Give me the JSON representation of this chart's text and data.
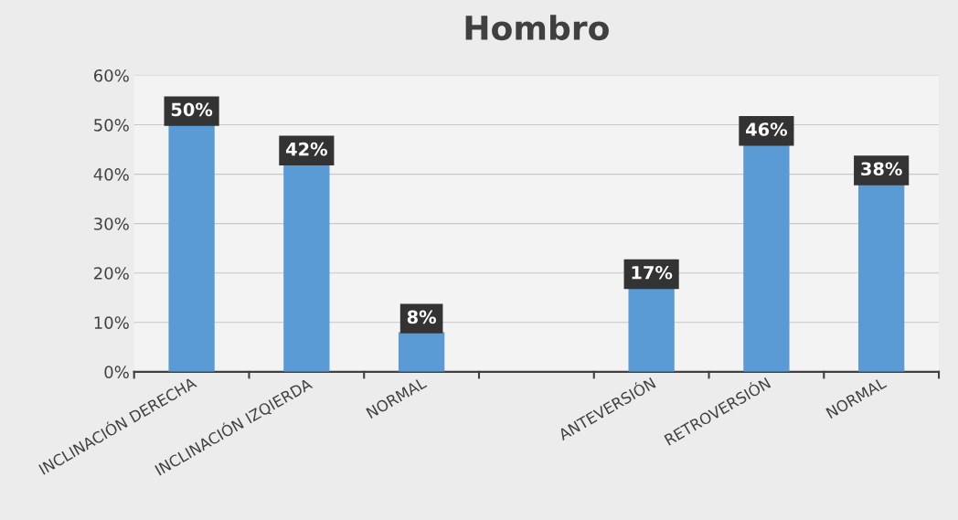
{
  "chart_data": {
    "type": "bar",
    "title": "Hombro",
    "categories": [
      "INCLINACIÓN DERECHA",
      "INCLINACIÓN IZQIERDA",
      "NORMAL",
      null,
      "ANTEVERSIÓN",
      "RETROVERSIÓN",
      "NORMAL"
    ],
    "values": [
      50,
      42,
      8,
      null,
      17,
      46,
      38
    ],
    "value_labels": [
      "50%",
      "42%",
      "8%",
      null,
      "17%",
      "46%",
      "38%"
    ],
    "color": "#5b9bd5",
    "ylim": [
      0,
      60
    ],
    "yticks": [
      {
        "value": 0,
        "label": "0%"
      },
      {
        "value": 10,
        "label": "10%"
      },
      {
        "value": 20,
        "label": "20%"
      },
      {
        "value": 30,
        "label": "30%"
      },
      {
        "value": 40,
        "label": "40%"
      },
      {
        "value": 50,
        "label": "50%"
      },
      {
        "value": 60,
        "label": "60%"
      }
    ],
    "grid": "y",
    "legend": false
  }
}
